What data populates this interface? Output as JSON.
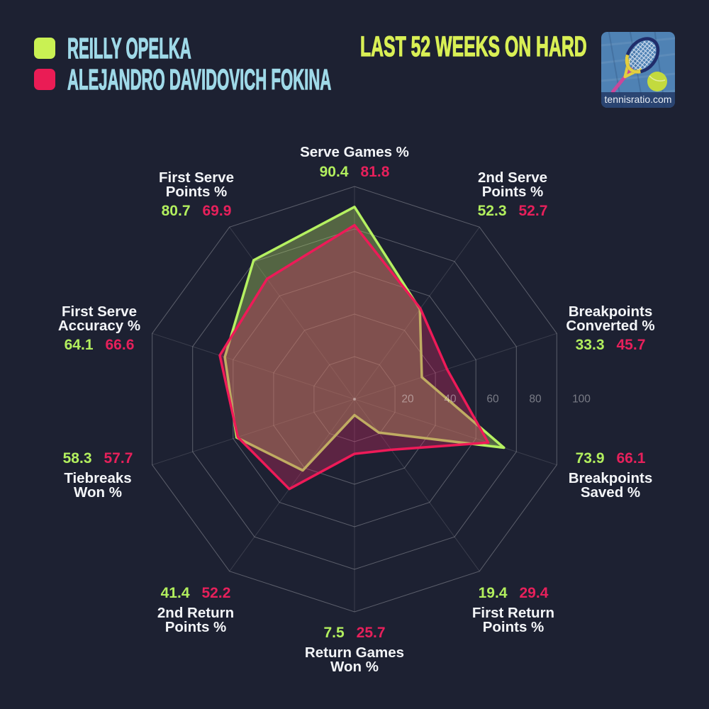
{
  "title": "LAST 52 WEEKS ON HARD",
  "legend": [
    {
      "name": "REILLY OPELKA",
      "color": "#c9f153"
    },
    {
      "name": "ALEJANDRO DAVIDOVICH FOKINA",
      "color": "#ea1c55"
    }
  ],
  "logo": {
    "caption": "tennisratio.com"
  },
  "colors": {
    "background": "#1d2132",
    "cyan": "#9fd9e8",
    "yellow": "#d9ef55",
    "label": "#f3f5f8",
    "green_value": "#b2ef5e",
    "pink_value": "#e6205b",
    "tick": "rgba(255,255,255,0.40)",
    "grid_ring": "rgba(255,255,255,0.28)",
    "grid_spoke": "rgba(255,255,255,0.13)"
  },
  "chart_data": {
    "type": "radar",
    "max": 100,
    "ticks": [
      20,
      40,
      60,
      80,
      100
    ],
    "series": [
      {
        "name": "REILLY OPELKA",
        "color": "#b5f161",
        "fill": "rgba(190,235,100,0.34)",
        "fill_blend": "normal"
      },
      {
        "name": "ALEJANDRO DAVIDOVICH FOKINA",
        "color": "#ee1a58",
        "fill": "rgba(212,42,100,0.35)",
        "fill_blend": "normal"
      }
    ],
    "axes": [
      {
        "label": [
          "Serve Games %"
        ],
        "values": [
          90.4,
          81.8
        ]
      },
      {
        "label": [
          "2nd Serve",
          "Points %"
        ],
        "values": [
          52.3,
          52.7
        ]
      },
      {
        "label": [
          "Breakpoints",
          "Converted %"
        ],
        "values": [
          33.3,
          45.7
        ]
      },
      {
        "label": [
          "Breakpoints",
          "Saved %"
        ],
        "values": [
          73.9,
          66.1
        ]
      },
      {
        "label": [
          "First Return",
          "Points %"
        ],
        "values": [
          19.4,
          29.4
        ]
      },
      {
        "label": [
          "Return Games",
          "Won %"
        ],
        "values": [
          7.5,
          25.7
        ]
      },
      {
        "label": [
          "2nd Return",
          "Points %"
        ],
        "values": [
          41.4,
          52.2
        ]
      },
      {
        "label": [
          "Tiebreaks",
          "Won %"
        ],
        "values": [
          58.3,
          57.7
        ]
      },
      {
        "label": [
          "First Serve",
          "Accuracy %"
        ],
        "values": [
          64.1,
          66.6
        ]
      },
      {
        "label": [
          "First Serve",
          "Points %"
        ],
        "values": [
          80.7,
          69.9
        ]
      }
    ]
  }
}
